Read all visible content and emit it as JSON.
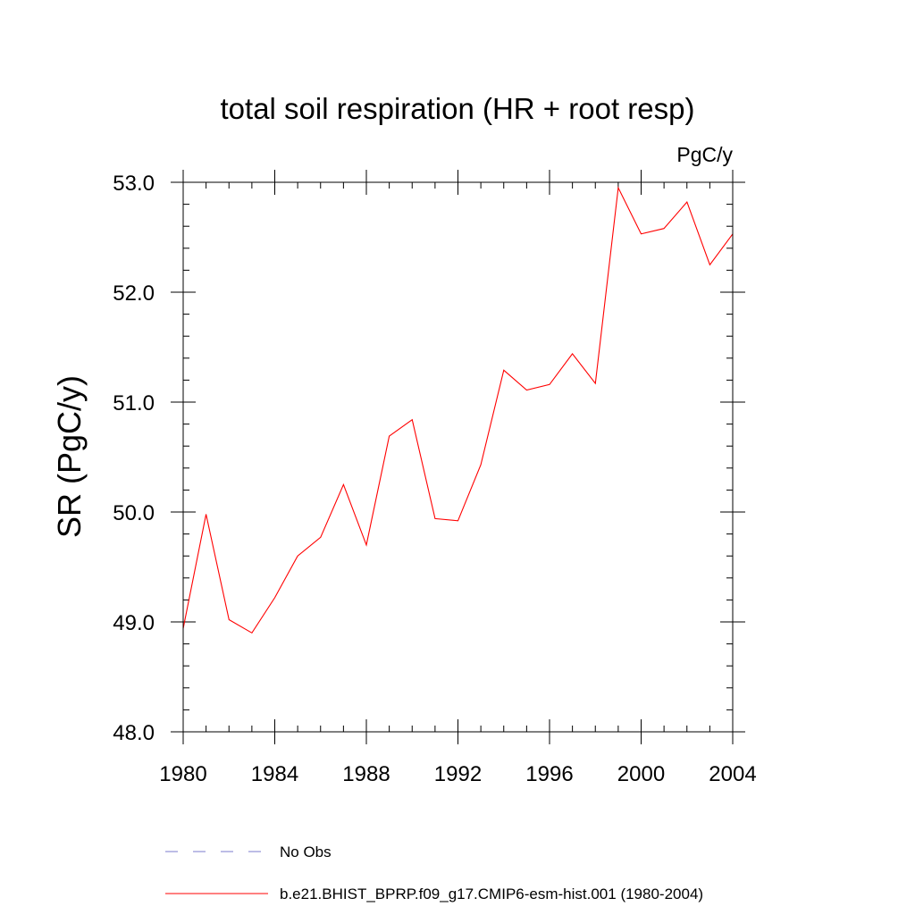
{
  "chart_data": {
    "type": "line",
    "title": "total soil respiration (HR + root resp)",
    "units": "PgC/y",
    "xlabel": "",
    "ylabel": "SR  (PgC/y)",
    "xlim": [
      1980,
      2004
    ],
    "ylim": [
      48.0,
      53.0
    ],
    "x_ticks": [
      1980,
      1984,
      1988,
      1992,
      1996,
      2000,
      2004
    ],
    "x_tick_labels": [
      "1980",
      "1984",
      "1988",
      "1992",
      "1996",
      "2000",
      "2004"
    ],
    "y_ticks": [
      48.0,
      49.0,
      50.0,
      51.0,
      52.0,
      53.0
    ],
    "y_tick_labels": [
      "48.0",
      "49.0",
      "50.0",
      "51.0",
      "52.0",
      "53.0"
    ],
    "grid": false,
    "legend_placement": "bottom",
    "series": [
      {
        "name": "b.e21.BHIST_BPRP.f09_g17.CMIP6-esm-hist.001 (1980-2004)",
        "color": "#ff0000",
        "line_style": "solid",
        "x": [
          1980,
          1981,
          1982,
          1983,
          1984,
          1985,
          1986,
          1987,
          1988,
          1989,
          1990,
          1991,
          1992,
          1993,
          1994,
          1995,
          1996,
          1997,
          1998,
          1999,
          2000,
          2001,
          2002,
          2003,
          2004
        ],
        "y": [
          48.94,
          49.98,
          49.02,
          48.9,
          49.22,
          49.6,
          49.77,
          50.25,
          49.7,
          50.69,
          50.84,
          49.94,
          49.92,
          50.43,
          51.29,
          51.11,
          51.16,
          51.44,
          51.17,
          52.95,
          52.53,
          52.58,
          52.82,
          52.25,
          52.53
        ]
      }
    ],
    "legend": [
      {
        "label": "No Obs",
        "color": "#7b7bcc",
        "line_style": "dashed"
      },
      {
        "label": "b.e21.BHIST_BPRP.f09_g17.CMIP6-esm-hist.001 (1980-2004)",
        "color": "#ff0000",
        "line_style": "solid"
      }
    ]
  }
}
